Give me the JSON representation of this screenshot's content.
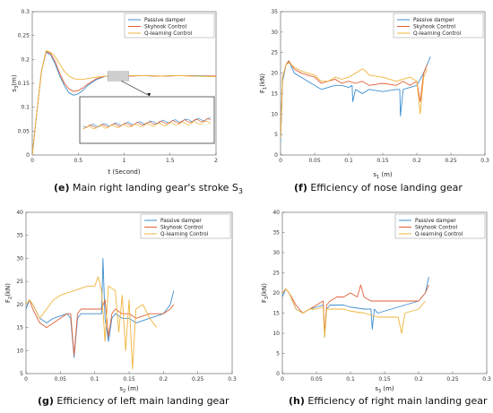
{
  "colors": {
    "passive": "#3e8ed0",
    "skyhook": "#e0623a",
    "qlearning": "#f0b43a",
    "axis": "#555555",
    "grid": "#e6e6e6"
  },
  "series_names": [
    "Passive damper",
    "Skyhook Control",
    "Q-learning Control"
  ],
  "chart_data": [
    {
      "id": "e",
      "type": "line",
      "caption_letter": "(e)",
      "caption_text": " Main right landing gear's stroke S",
      "caption_sub": "3",
      "xlabel": "t (Second)",
      "ylabel_main": "s",
      "ylabel_sub": "3",
      "ylabel_suffix": "(m)",
      "xlim": [
        0,
        2
      ],
      "ylim": [
        0,
        0.3
      ],
      "xticks": [
        0,
        0.5,
        1,
        1.5,
        2
      ],
      "yticks": [
        0,
        0.05,
        0.1,
        0.15,
        0.2,
        0.25,
        0.3
      ],
      "xticklabels": [
        "0",
        "0.5",
        "1",
        "1.5",
        "2"
      ],
      "yticklabels": [
        "0",
        "0.05",
        "0.1",
        "0.15",
        "0.2",
        "0.25",
        "0.3"
      ],
      "legend": "top-right",
      "has_inset": true,
      "series": [
        {
          "name": "Passive damper",
          "x": [
            0,
            0.05,
            0.1,
            0.15,
            0.2,
            0.25,
            0.3,
            0.35,
            0.4,
            0.45,
            0.5,
            0.55,
            0.6,
            0.7,
            0.8,
            0.9,
            1.0,
            1.2,
            1.4,
            1.6,
            1.8,
            2.0
          ],
          "y": [
            0,
            0.09,
            0.175,
            0.215,
            0.21,
            0.19,
            0.165,
            0.145,
            0.13,
            0.125,
            0.128,
            0.135,
            0.145,
            0.158,
            0.165,
            0.164,
            0.165,
            0.166,
            0.165,
            0.166,
            0.166,
            0.165
          ]
        },
        {
          "name": "Skyhook Control",
          "x": [
            0,
            0.05,
            0.1,
            0.15,
            0.2,
            0.25,
            0.3,
            0.35,
            0.4,
            0.45,
            0.5,
            0.55,
            0.6,
            0.7,
            0.8,
            0.9,
            1.0,
            1.2,
            1.4,
            1.6,
            1.8,
            2.0
          ],
          "y": [
            0,
            0.09,
            0.175,
            0.217,
            0.212,
            0.195,
            0.17,
            0.15,
            0.138,
            0.133,
            0.135,
            0.14,
            0.148,
            0.16,
            0.165,
            0.164,
            0.165,
            0.166,
            0.165,
            0.166,
            0.165,
            0.165
          ]
        },
        {
          "name": "Q-learning Control",
          "x": [
            0,
            0.05,
            0.1,
            0.15,
            0.2,
            0.25,
            0.3,
            0.35,
            0.4,
            0.45,
            0.5,
            0.55,
            0.6,
            0.7,
            0.8,
            0.9,
            1.0,
            1.2,
            1.4,
            1.6,
            1.8,
            2.0
          ],
          "y": [
            0,
            0.09,
            0.175,
            0.218,
            0.215,
            0.205,
            0.19,
            0.175,
            0.165,
            0.16,
            0.158,
            0.158,
            0.16,
            0.163,
            0.165,
            0.165,
            0.166,
            0.166,
            0.165,
            0.166,
            0.165,
            0.164
          ]
        }
      ]
    },
    {
      "id": "f",
      "type": "line",
      "caption_letter": "(f)",
      "caption_text": " Efficiency of nose landing gear",
      "caption_sub": "",
      "xlabel_main": "s",
      "xlabel_sub": "1",
      "xlabel_suffix": " (m)",
      "ylabel_main": "F",
      "ylabel_sub": "1",
      "ylabel_suffix": "(kN)",
      "xlim": [
        0,
        0.3
      ],
      "ylim": [
        0,
        35
      ],
      "xticks": [
        0,
        0.05,
        0.1,
        0.15,
        0.2,
        0.25,
        0.3
      ],
      "yticks": [
        0,
        5,
        10,
        15,
        20,
        25,
        30,
        35
      ],
      "xticklabels": [
        "0",
        "0.05",
        "0.1",
        "0.15",
        "0.2",
        "0.25",
        "0.3"
      ],
      "yticklabels": [
        "0",
        "5",
        "10",
        "15",
        "20",
        "25",
        "30",
        "35"
      ],
      "legend": "top-right",
      "series": [
        {
          "name": "Passive damper",
          "x": [
            0,
            0.003,
            0.008,
            0.012,
            0.02,
            0.03,
            0.04,
            0.05,
            0.06,
            0.07,
            0.08,
            0.09,
            0.1,
            0.105,
            0.106,
            0.11,
            0.12,
            0.13,
            0.15,
            0.17,
            0.175,
            0.176,
            0.18,
            0.2,
            0.21,
            0.22
          ],
          "y": [
            3,
            18,
            22,
            23,
            20,
            19,
            18,
            17,
            16,
            16.5,
            17,
            17,
            16.5,
            17,
            13,
            16,
            15,
            16,
            15.5,
            16,
            16,
            9.5,
            16,
            17,
            20,
            24
          ]
        },
        {
          "name": "Skyhook Control",
          "x": [
            0,
            0.003,
            0.008,
            0.012,
            0.02,
            0.03,
            0.04,
            0.05,
            0.06,
            0.07,
            0.08,
            0.09,
            0.1,
            0.11,
            0.12,
            0.13,
            0.15,
            0.17,
            0.18,
            0.19,
            0.2,
            0.205,
            0.21,
            0.215
          ],
          "y": [
            4,
            19,
            22,
            23,
            21,
            20,
            19.5,
            19,
            17.5,
            18,
            18.5,
            17.5,
            18,
            17.5,
            18,
            17,
            17.5,
            17,
            18,
            17,
            18,
            13,
            20,
            22
          ]
        },
        {
          "name": "Q-learning Control",
          "x": [
            0,
            0.003,
            0.008,
            0.012,
            0.02,
            0.03,
            0.04,
            0.05,
            0.06,
            0.07,
            0.08,
            0.09,
            0.1,
            0.11,
            0.12,
            0.125,
            0.13,
            0.15,
            0.17,
            0.19,
            0.2,
            0.205,
            0.21,
            0.215
          ],
          "y": [
            4,
            19,
            22,
            22.5,
            21.5,
            20.5,
            20,
            19.5,
            18,
            18,
            19,
            18.5,
            19,
            20,
            21,
            20.5,
            19.5,
            19,
            18,
            19,
            18,
            10,
            19,
            21
          ]
        }
      ]
    },
    {
      "id": "g",
      "type": "line",
      "caption_letter": "(g)",
      "caption_text": " Efficiency of left main landing gear",
      "caption_sub": "",
      "xlabel_main": "s",
      "xlabel_sub": "2",
      "xlabel_suffix": " (m)",
      "ylabel_main": "F",
      "ylabel_sub": "2",
      "ylabel_suffix": "(kN)",
      "xlim": [
        0,
        0.3
      ],
      "ylim": [
        5,
        40
      ],
      "xticks": [
        0,
        0.05,
        0.1,
        0.15,
        0.2,
        0.25,
        0.3
      ],
      "yticks": [
        5,
        10,
        15,
        20,
        25,
        30,
        35,
        40
      ],
      "xticklabels": [
        "0",
        "0.05",
        "0.1",
        "0.15",
        "0.2",
        "0.25",
        "0.3"
      ],
      "yticklabels": [
        "5",
        "10",
        "15",
        "20",
        "25",
        "30",
        "35",
        "40"
      ],
      "legend": "top-right",
      "series": [
        {
          "name": "Passive damper",
          "x": [
            0,
            0.005,
            0.01,
            0.02,
            0.03,
            0.04,
            0.05,
            0.06,
            0.065,
            0.07,
            0.075,
            0.08,
            0.09,
            0.1,
            0.11,
            0.112,
            0.115,
            0.12,
            0.125,
            0.13,
            0.14,
            0.15,
            0.16,
            0.18,
            0.2,
            0.21,
            0.215
          ],
          "y": [
            19,
            21,
            20,
            17,
            16,
            17,
            17.5,
            18,
            17,
            8.5,
            17,
            18,
            18,
            18,
            18,
            30,
            17,
            12,
            17,
            18,
            17,
            17,
            16,
            17,
            18,
            20,
            23
          ]
        },
        {
          "name": "Skyhook Control",
          "x": [
            0,
            0.005,
            0.01,
            0.02,
            0.03,
            0.04,
            0.05,
            0.06,
            0.065,
            0.07,
            0.075,
            0.08,
            0.09,
            0.1,
            0.11,
            0.115,
            0.12,
            0.125,
            0.13,
            0.14,
            0.15,
            0.16,
            0.18,
            0.2,
            0.21,
            0.215
          ],
          "y": [
            20,
            21,
            19,
            16,
            15,
            16,
            17,
            18,
            18,
            9,
            18,
            19,
            19,
            19,
            19,
            21,
            13,
            18,
            19,
            18,
            18,
            17,
            18,
            18,
            19,
            20
          ]
        },
        {
          "name": "Q-learning Control",
          "x": [
            0,
            0.005,
            0.01,
            0.02,
            0.03,
            0.04,
            0.05,
            0.06,
            0.07,
            0.08,
            0.09,
            0.1,
            0.105,
            0.11,
            0.115,
            0.12,
            0.13,
            0.135,
            0.14,
            0.145,
            0.15,
            0.155,
            0.16,
            0.17,
            0.18,
            0.19
          ],
          "y": [
            20,
            21,
            20,
            17,
            19,
            21,
            22,
            22.5,
            23,
            23.5,
            24,
            24,
            26,
            23,
            12,
            24,
            23,
            14,
            22,
            10,
            21,
            6,
            19,
            20,
            17,
            15
          ]
        }
      ]
    },
    {
      "id": "h",
      "type": "line",
      "caption_letter": "(h)",
      "caption_text": " Efficiency of right main landing gear",
      "caption_sub": "",
      "xlabel_main": "s",
      "xlabel_sub": "3",
      "xlabel_suffix": " (m)",
      "ylabel_main": "F",
      "ylabel_sub": "3",
      "ylabel_suffix": "(kN)",
      "xlim": [
        0,
        0.3
      ],
      "ylim": [
        0,
        40
      ],
      "xticks": [
        0,
        0.05,
        0.1,
        0.15,
        0.2,
        0.25,
        0.3
      ],
      "yticks": [
        0,
        5,
        10,
        15,
        20,
        25,
        30,
        35,
        40
      ],
      "xticklabels": [
        "0",
        "0.05",
        "0.1",
        "0.15",
        "0.2",
        "0.25",
        "0.3"
      ],
      "yticklabels": [
        "0",
        "5",
        "10",
        "15",
        "20",
        "25",
        "30",
        "35",
        "40"
      ],
      "legend": "top-right",
      "series": [
        {
          "name": "Passive damper",
          "x": [
            0,
            0.005,
            0.01,
            0.02,
            0.03,
            0.04,
            0.05,
            0.06,
            0.062,
            0.065,
            0.07,
            0.08,
            0.09,
            0.1,
            0.12,
            0.13,
            0.132,
            0.135,
            0.14,
            0.16,
            0.18,
            0.2,
            0.21,
            0.215
          ],
          "y": [
            19,
            21,
            20,
            16,
            15,
            16,
            16.5,
            17,
            9,
            16,
            17,
            17,
            17,
            16.5,
            16,
            16,
            11,
            16,
            15,
            16,
            17,
            18,
            20,
            24
          ]
        },
        {
          "name": "Skyhook Control",
          "x": [
            0,
            0.005,
            0.01,
            0.02,
            0.03,
            0.04,
            0.05,
            0.06,
            0.062,
            0.065,
            0.07,
            0.08,
            0.09,
            0.1,
            0.11,
            0.115,
            0.12,
            0.13,
            0.14,
            0.16,
            0.18,
            0.2,
            0.21,
            0.215
          ],
          "y": [
            20,
            21,
            20,
            17,
            15,
            16,
            17,
            18,
            10,
            17,
            18,
            19,
            19,
            20,
            19,
            22,
            19,
            18,
            18,
            18,
            18,
            18,
            20,
            22
          ]
        },
        {
          "name": "Q-learning Control",
          "x": [
            0,
            0.005,
            0.01,
            0.02,
            0.03,
            0.04,
            0.05,
            0.06,
            0.062,
            0.065,
            0.07,
            0.08,
            0.09,
            0.1,
            0.12,
            0.13,
            0.14,
            0.15,
            0.16,
            0.17,
            0.175,
            0.18,
            0.2,
            0.21
          ],
          "y": [
            20,
            21,
            20,
            16,
            15,
            16,
            16,
            16.5,
            9,
            16,
            16,
            16,
            16,
            15.5,
            15,
            14.5,
            14,
            14,
            14,
            14,
            10,
            15,
            16,
            18
          ]
        }
      ]
    }
  ]
}
